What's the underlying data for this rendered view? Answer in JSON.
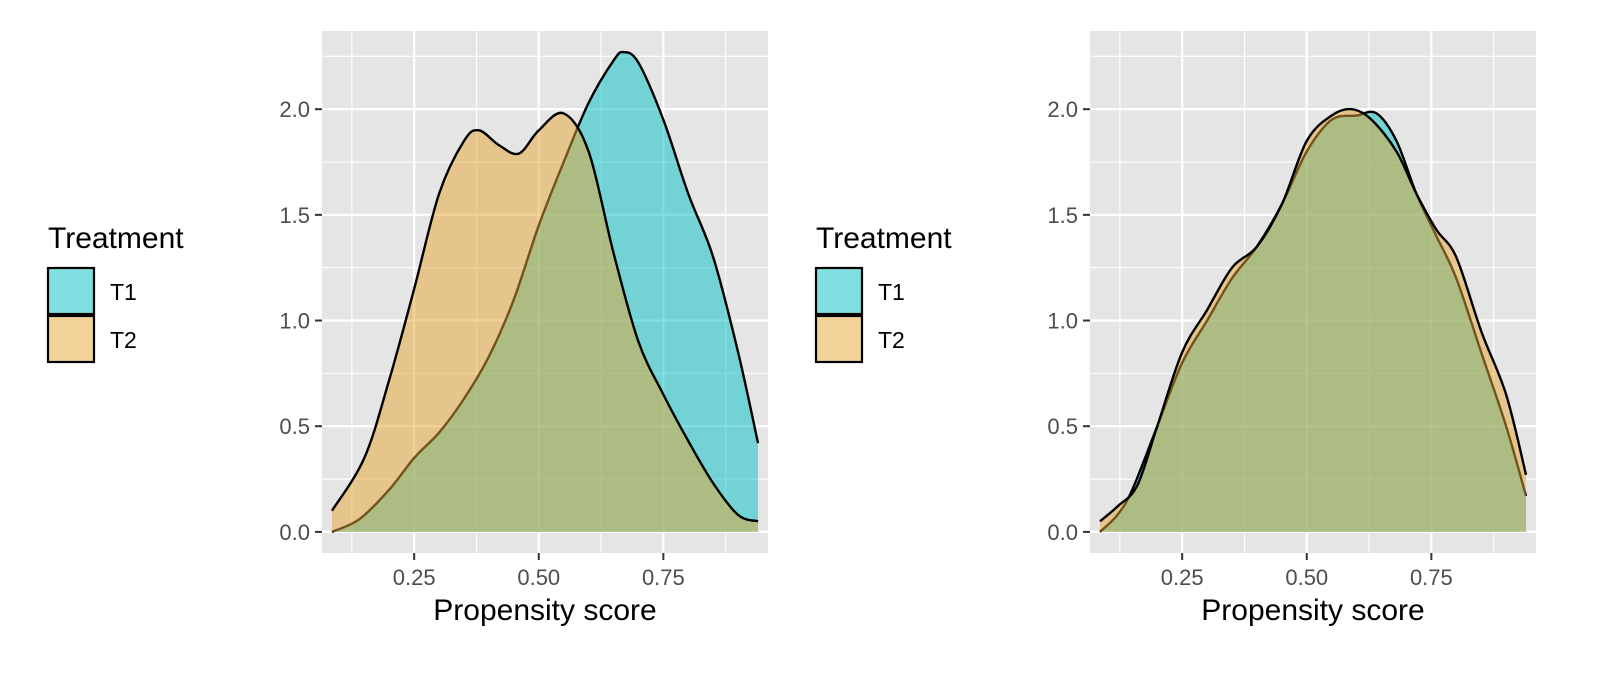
{
  "colors": {
    "T1": "#00BFC4",
    "T2": "#E6A532",
    "panel_bg": "#E5E5E5",
    "grid": "#FFFFFF",
    "outline": "#000000"
  },
  "chart_data": [
    {
      "type": "area",
      "title": "",
      "xlabel": "Propensity score",
      "ylabel": "",
      "xlim": [
        0.065,
        0.96
      ],
      "ylim": [
        -0.1,
        2.37
      ],
      "xticks": [
        "0.25",
        "0.50",
        "0.75"
      ],
      "xtick_values": [
        0.25,
        0.5,
        0.75
      ],
      "yticks": [
        "0.0",
        "0.5",
        "1.0",
        "1.5",
        "2.0"
      ],
      "ytick_values": [
        0,
        0.5,
        1,
        1.5,
        2
      ],
      "grid": true,
      "legend": {
        "title": "Treatment",
        "position": "left",
        "entries": [
          "T1",
          "T2"
        ]
      },
      "series": [
        {
          "name": "T1",
          "x": [
            0.085,
            0.14,
            0.2,
            0.25,
            0.3,
            0.35,
            0.4,
            0.45,
            0.5,
            0.55,
            0.6,
            0.65,
            0.67,
            0.7,
            0.75,
            0.8,
            0.85,
            0.9,
            0.94
          ],
          "y": [
            0.0,
            0.06,
            0.2,
            0.35,
            0.47,
            0.63,
            0.83,
            1.1,
            1.45,
            1.75,
            2.03,
            2.23,
            2.27,
            2.22,
            1.95,
            1.6,
            1.3,
            0.85,
            0.42
          ]
        },
        {
          "name": "T2",
          "x": [
            0.085,
            0.15,
            0.2,
            0.25,
            0.3,
            0.35,
            0.38,
            0.42,
            0.46,
            0.5,
            0.55,
            0.6,
            0.65,
            0.7,
            0.75,
            0.8,
            0.85,
            0.9,
            0.94
          ],
          "y": [
            0.1,
            0.35,
            0.72,
            1.15,
            1.6,
            1.85,
            1.9,
            1.83,
            1.79,
            1.9,
            1.98,
            1.8,
            1.32,
            0.9,
            0.65,
            0.43,
            0.23,
            0.08,
            0.05
          ]
        }
      ]
    },
    {
      "type": "area",
      "title": "",
      "xlabel": "Propensity score",
      "ylabel": "",
      "xlim": [
        0.065,
        0.96
      ],
      "ylim": [
        -0.1,
        2.37
      ],
      "xticks": [
        "0.25",
        "0.50",
        "0.75"
      ],
      "xtick_values": [
        0.25,
        0.5,
        0.75
      ],
      "yticks": [
        "0.0",
        "0.5",
        "1.0",
        "1.5",
        "2.0"
      ],
      "ytick_values": [
        0,
        0.5,
        1,
        1.5,
        2
      ],
      "grid": true,
      "legend": {
        "title": "Treatment",
        "position": "left",
        "entries": [
          "T1",
          "T2"
        ]
      },
      "series": [
        {
          "name": "T1",
          "x": [
            0.085,
            0.12,
            0.15,
            0.2,
            0.25,
            0.3,
            0.35,
            0.4,
            0.45,
            0.5,
            0.55,
            0.6,
            0.64,
            0.68,
            0.72,
            0.76,
            0.8,
            0.85,
            0.9,
            0.94
          ],
          "y": [
            0.0,
            0.08,
            0.2,
            0.5,
            0.8,
            1.0,
            1.2,
            1.35,
            1.55,
            1.8,
            1.95,
            1.97,
            1.98,
            1.85,
            1.6,
            1.4,
            1.2,
            0.85,
            0.5,
            0.17
          ]
        },
        {
          "name": "T2",
          "x": [
            0.085,
            0.12,
            0.16,
            0.2,
            0.25,
            0.3,
            0.35,
            0.4,
            0.45,
            0.5,
            0.55,
            0.59,
            0.63,
            0.68,
            0.72,
            0.76,
            0.8,
            0.85,
            0.9,
            0.94
          ],
          "y": [
            0.05,
            0.12,
            0.22,
            0.5,
            0.85,
            1.05,
            1.25,
            1.35,
            1.55,
            1.85,
            1.97,
            2.0,
            1.95,
            1.8,
            1.6,
            1.43,
            1.3,
            0.95,
            0.65,
            0.27
          ]
        }
      ]
    }
  ]
}
